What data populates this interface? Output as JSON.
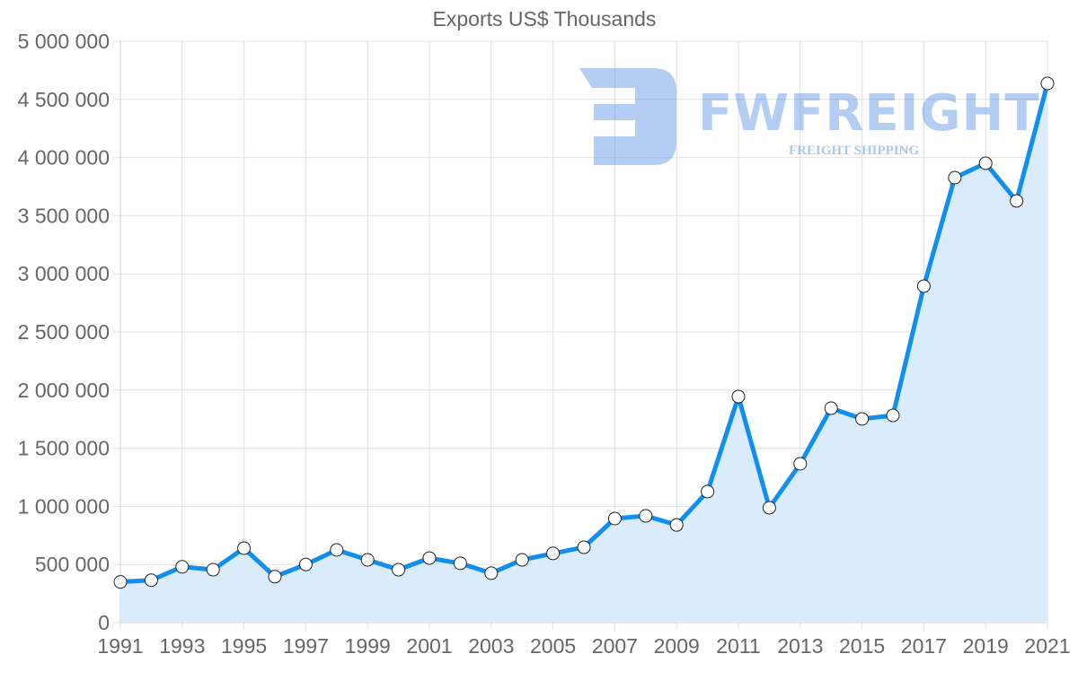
{
  "chart": {
    "title": "Exports US$ Thousands",
    "line_color": "#118ff0",
    "fill_color": "#d8ebfc",
    "grid_color": "#e2e2e2",
    "tick_color": "#666666"
  },
  "watermark": {
    "brand": "FWFREIGHT",
    "tagline": "FREIGHT SHIPPING",
    "color": "#3b7de0"
  },
  "chart_data": {
    "type": "area",
    "title": "Exports US$ Thousands",
    "xlabel": "",
    "ylabel": "",
    "x": [
      1991,
      1992,
      1993,
      1994,
      1995,
      1996,
      1997,
      1998,
      1999,
      2000,
      2001,
      2002,
      2003,
      2004,
      2005,
      2006,
      2007,
      2008,
      2009,
      2010,
      2011,
      2012,
      2013,
      2014,
      2015,
      2016,
      2017,
      2018,
      2019,
      2020,
      2021
    ],
    "x_tick_labels": [
      "1991",
      "1993",
      "1995",
      "1997",
      "1999",
      "2001",
      "2003",
      "2005",
      "2007",
      "2009",
      "2011",
      "2013",
      "2015",
      "2017",
      "2019",
      "2021"
    ],
    "y_tick_labels": [
      "0",
      "500 000",
      "1 000 000",
      "1 500 000",
      "2 000 000",
      "2 500 000",
      "3 000 000",
      "3 500 000",
      "4 000 000",
      "4 500 000",
      "5 000 000"
    ],
    "ylim": [
      0,
      5000000
    ],
    "grid": true,
    "legend": "none",
    "series": [
      {
        "name": "Exports US$ Thousands",
        "values": [
          350000,
          365000,
          480000,
          455000,
          640000,
          395000,
          500000,
          625000,
          540000,
          455000,
          555000,
          510000,
          425000,
          540000,
          595000,
          648000,
          895000,
          918000,
          840000,
          1127000,
          1944000,
          988000,
          1366000,
          1844000,
          1752000,
          1782000,
          2894000,
          3827000,
          3951000,
          3627000,
          4637000
        ]
      }
    ]
  }
}
